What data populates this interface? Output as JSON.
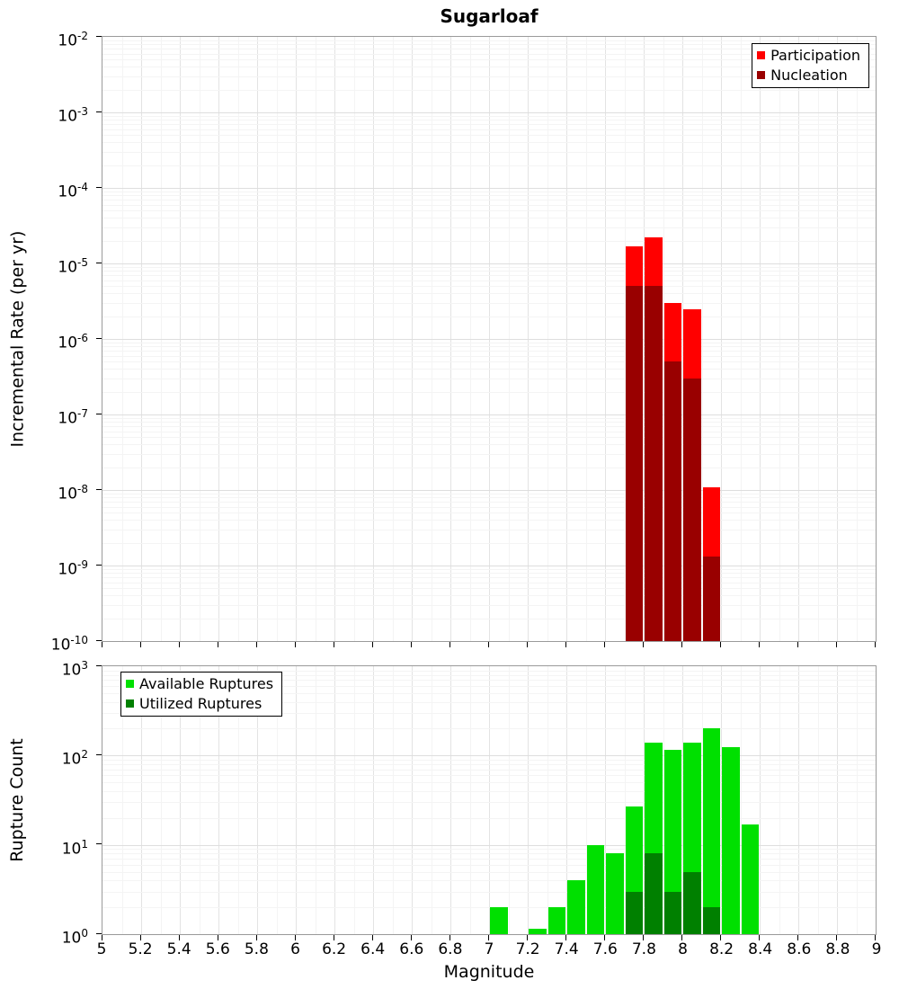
{
  "title": "Sugarloaf",
  "xlabel": "Magnitude",
  "x_tick_labels": [
    "5",
    "5.2",
    "5.4",
    "5.6",
    "5.8",
    "6",
    "6.2",
    "6.4",
    "6.6",
    "6.8",
    "7",
    "7.2",
    "7.4",
    "7.6",
    "7.8",
    "8",
    "8.2",
    "8.4",
    "8.6",
    "8.8",
    "9"
  ],
  "colors": {
    "participation": "#ff0000",
    "nucleation": "#990000",
    "available_ruptures": "#00e000",
    "utilized_ruptures": "#008000"
  },
  "chart_data": [
    {
      "type": "bar",
      "title": "Sugarloaf",
      "xlabel": "Magnitude",
      "ylabel": "Incremental Rate (per yr)",
      "x_range": [
        5,
        9
      ],
      "y_scale": "log",
      "y_log_range": [
        -10,
        -2
      ],
      "y_tick_exponents": [
        -2,
        -3,
        -4,
        -5,
        -6,
        -7,
        -8,
        -9,
        -10
      ],
      "grid": true,
      "legend_position": "top-right",
      "bar_width": 0.1,
      "legend": [
        {
          "label": "Participation",
          "color": "#ff0000"
        },
        {
          "label": "Nucleation",
          "color": "#990000"
        }
      ],
      "series": [
        {
          "name": "Participation",
          "color": "#ff0000",
          "x": [
            7.75,
            7.85,
            7.95,
            8.05,
            8.15
          ],
          "values": [
            1.7e-05,
            2.2e-05,
            3e-06,
            2.5e-06,
            1.1e-08
          ]
        },
        {
          "name": "Nucleation",
          "color": "#990000",
          "x": [
            7.75,
            7.85,
            7.95,
            8.05,
            8.15
          ],
          "values": [
            5e-06,
            5e-06,
            5e-07,
            3e-07,
            1.3e-09
          ]
        }
      ]
    },
    {
      "type": "bar",
      "title": "",
      "xlabel": "Magnitude",
      "ylabel": "Rupture Count",
      "x_range": [
        5,
        9
      ],
      "y_scale": "log",
      "y_log_range": [
        0,
        3
      ],
      "y_tick_exponents": [
        3,
        2,
        1,
        0
      ],
      "grid": true,
      "legend_position": "top-left",
      "bar_width": 0.1,
      "legend": [
        {
          "label": "Available Ruptures",
          "color": "#00e000"
        },
        {
          "label": "Utilized Ruptures",
          "color": "#008000"
        }
      ],
      "series": [
        {
          "name": "Available Ruptures",
          "color": "#00e000",
          "x": [
            7.05,
            7.25,
            7.35,
            7.45,
            7.55,
            7.65,
            7.75,
            7.85,
            7.95,
            8.05,
            8.15,
            8.25,
            8.35
          ],
          "values": [
            2,
            1,
            2,
            4,
            10,
            8,
            27,
            140,
            115,
            140,
            200,
            125,
            17
          ]
        },
        {
          "name": "Utilized Ruptures",
          "color": "#008000",
          "x": [
            7.75,
            7.85,
            7.95,
            8.05,
            8.15
          ],
          "values": [
            3,
            8,
            3,
            5,
            2
          ]
        }
      ]
    }
  ]
}
